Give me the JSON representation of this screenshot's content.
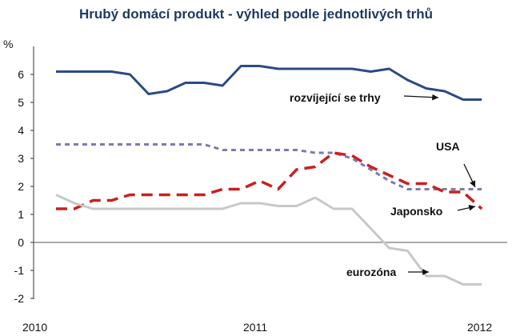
{
  "chart_data": {
    "type": "line",
    "title": "Hrubý domácí produkt - výhled podle jednotlivých trhů",
    "ylabel": "%",
    "xlabel": "",
    "ylim": [
      -2,
      7
    ],
    "yticks": [
      "-2",
      "-1",
      "0",
      "1",
      "2",
      "3",
      "4",
      "5",
      "6"
    ],
    "xlim": [
      2010,
      2012
    ],
    "xticks": [
      "2010",
      "2011",
      "2012"
    ],
    "grid": false,
    "legend": "none",
    "x": [
      2010.0,
      2010.083,
      2010.167,
      2010.25,
      2010.333,
      2010.417,
      2010.5,
      2010.583,
      2010.667,
      2010.75,
      2010.833,
      2010.917,
      2011.0,
      2011.083,
      2011.167,
      2011.25,
      2011.333,
      2011.417,
      2011.5,
      2011.583,
      2011.667,
      2011.75,
      2011.833,
      2011.917
    ],
    "series": [
      {
        "name": "rozvíjející se trhy",
        "color": "#2b4a86",
        "style": "solid",
        "values": [
          6.1,
          6.1,
          6.1,
          6.1,
          6.0,
          5.3,
          5.4,
          5.7,
          5.7,
          5.6,
          6.3,
          6.3,
          6.2,
          6.2,
          6.2,
          6.2,
          6.2,
          6.1,
          6.2,
          5.8,
          5.5,
          5.4,
          5.1,
          5.1
        ]
      },
      {
        "name": "USA",
        "color": "#7b7bb5",
        "style": "dotted",
        "values": [
          3.5,
          3.5,
          3.5,
          3.5,
          3.5,
          3.5,
          3.5,
          3.5,
          3.5,
          3.3,
          3.3,
          3.3,
          3.3,
          3.3,
          3.2,
          3.2,
          3.0,
          2.6,
          2.2,
          1.9,
          1.9,
          1.9,
          1.9,
          1.9
        ]
      },
      {
        "name": "Japonsko",
        "color": "#cc1f1f",
        "style": "dashed",
        "values": [
          1.2,
          1.2,
          1.5,
          1.5,
          1.7,
          1.7,
          1.7,
          1.7,
          1.7,
          1.9,
          1.9,
          2.2,
          1.9,
          2.6,
          2.7,
          3.2,
          3.1,
          2.7,
          2.4,
          2.1,
          2.1,
          1.8,
          1.8,
          1.2
        ]
      },
      {
        "name": "eurozóna",
        "color": "#c8c8c8",
        "style": "solid",
        "values": [
          1.7,
          1.4,
          1.2,
          1.2,
          1.2,
          1.2,
          1.2,
          1.2,
          1.2,
          1.2,
          1.4,
          1.4,
          1.3,
          1.3,
          1.6,
          1.2,
          1.2,
          0.5,
          -0.2,
          -0.3,
          -1.2,
          -1.2,
          -1.5,
          -1.5
        ]
      }
    ],
    "annotations": [
      {
        "series": "rozvíjející se trhy",
        "text": "rozvíjející se trhy"
      },
      {
        "series": "USA",
        "text": "USA"
      },
      {
        "series": "Japonsko",
        "text": "Japonsko"
      },
      {
        "series": "eurozóna",
        "text": "eurozóna"
      }
    ]
  }
}
